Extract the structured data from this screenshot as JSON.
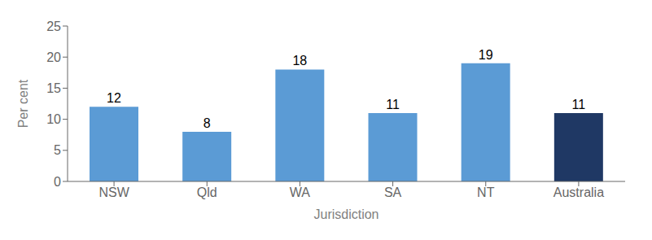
{
  "chart_data": {
    "type": "bar",
    "categories": [
      "NSW",
      "Qld",
      "WA",
      "SA",
      "NT",
      "Australia"
    ],
    "values": [
      12,
      8,
      18,
      11,
      19,
      11
    ],
    "colors": [
      "#5B9BD5",
      "#5B9BD5",
      "#5B9BD5",
      "#5B9BD5",
      "#5B9BD5",
      "#1F3864"
    ],
    "xlabel": "Jurisdiction",
    "ylabel": "Per cent",
    "ylim": [
      0,
      25
    ],
    "yticks": [
      0,
      5,
      10,
      15,
      20,
      25
    ],
    "grid": false,
    "data_labels": true
  }
}
